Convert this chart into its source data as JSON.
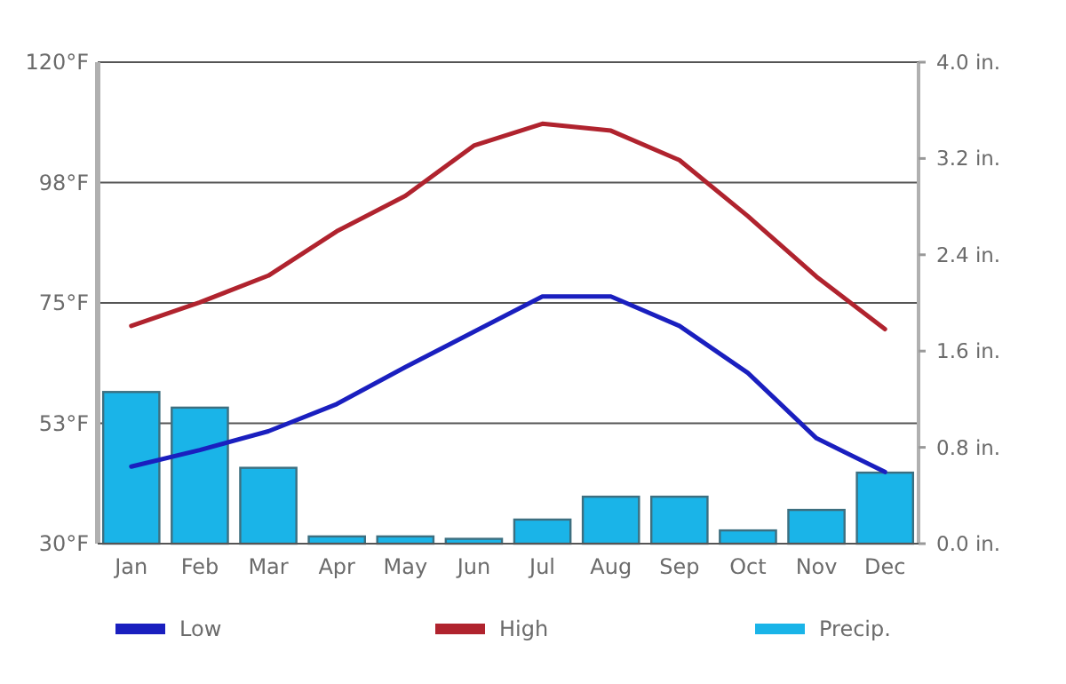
{
  "chart_data": {
    "type": "bar",
    "categories": [
      "Jan",
      "Feb",
      "Mar",
      "Apr",
      "May",
      "Jun",
      "Jul",
      "Aug",
      "Sep",
      "Oct",
      "Nov",
      "Dec"
    ],
    "series": [
      {
        "name": "Low",
        "type": "line",
        "color": "#1a1fbf",
        "values": [
          44.4,
          47.5,
          51.0,
          56.1,
          63.0,
          69.6,
          76.2,
          76.2,
          70.7,
          61.9,
          49.7,
          43.4
        ]
      },
      {
        "name": "High",
        "type": "line",
        "color": "#b0232e",
        "values": [
          70.7,
          75.1,
          80.1,
          88.4,
          95.0,
          104.4,
          108.5,
          107.2,
          101.7,
          91.2,
          79.9,
          70.1
        ]
      },
      {
        "name": "Precip.",
        "axis": "y2",
        "color": "#1ab4e8",
        "values": [
          1.26,
          1.13,
          0.63,
          0.06,
          0.06,
          0.04,
          0.2,
          0.39,
          0.39,
          0.11,
          0.28,
          0.59
        ]
      }
    ],
    "ylim": [
      30,
      120
    ],
    "yticks": [
      {
        "value": 30,
        "label": "30°F"
      },
      {
        "value": 52.5,
        "label": "53°F"
      },
      {
        "value": 75,
        "label": "75°F"
      },
      {
        "value": 97.5,
        "label": "98°F"
      },
      {
        "value": 120,
        "label": "120°F"
      }
    ],
    "y2lim": [
      0,
      4
    ],
    "y2ticks": [
      {
        "value": 0,
        "label": "0.0 in."
      },
      {
        "value": 0.8,
        "label": "0.8 in."
      },
      {
        "value": 1.6,
        "label": "1.6 in."
      },
      {
        "value": 2.4,
        "label": "2.4 in."
      },
      {
        "value": 3.2,
        "label": "3.2 in."
      },
      {
        "value": 4,
        "label": "4.0 in."
      }
    ],
    "grid": "y",
    "legend": "bottom"
  }
}
